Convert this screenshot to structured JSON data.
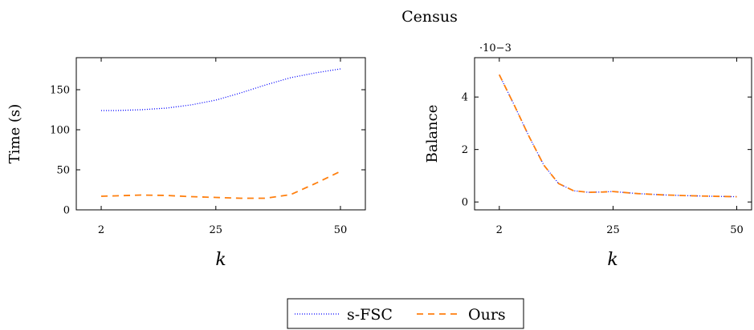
{
  "title": "Census",
  "legend": [
    {
      "name": "s-FSC",
      "color": "#0000ff",
      "style": "dotted"
    },
    {
      "name": "Ours",
      "color": "#ff7f0e",
      "style": "dashed"
    }
  ],
  "chart_data": [
    {
      "type": "line",
      "title": "",
      "xlabel": "k",
      "ylabel": "Time (s)",
      "x_ticks": [
        2,
        25,
        50
      ],
      "y_ticks": [
        0,
        50,
        100,
        150
      ],
      "xlim": [
        -3,
        55
      ],
      "ylim": [
        0,
        190
      ],
      "series": [
        {
          "name": "s-FSC",
          "color": "#0000ff",
          "dash": "dotted",
          "x": [
            2,
            5,
            10,
            15,
            20,
            25,
            30,
            35,
            40,
            45,
            50
          ],
          "y": [
            124,
            124,
            125,
            127,
            131,
            137,
            146,
            156,
            165,
            171,
            176
          ]
        },
        {
          "name": "Ours",
          "color": "#ff7f0e",
          "dash": "dashed",
          "x": [
            2,
            5,
            10,
            15,
            20,
            25,
            30,
            35,
            40,
            45,
            50
          ],
          "y": [
            17,
            17.5,
            18.5,
            18,
            16.5,
            15.5,
            14.5,
            14.5,
            19,
            33,
            48
          ]
        }
      ]
    },
    {
      "type": "line",
      "title": "",
      "xlabel": "k",
      "ylabel": "Balance",
      "y_multiplier": "·10−3",
      "x_ticks": [
        2,
        25,
        50
      ],
      "y_ticks": [
        0,
        2,
        4
      ],
      "xlim": [
        -3,
        53
      ],
      "ylim": [
        -0.3,
        5.5
      ],
      "series": [
        {
          "name": "s-FSC",
          "color": "#0000ff",
          "dash": "dotted",
          "x": [
            2,
            5,
            8,
            11,
            14,
            17,
            20,
            23,
            25,
            30,
            35,
            40,
            45,
            50
          ],
          "y": [
            4.85,
            3.7,
            2.5,
            1.4,
            0.7,
            0.43,
            0.37,
            0.38,
            0.4,
            0.32,
            0.27,
            0.24,
            0.22,
            0.2
          ]
        },
        {
          "name": "Ours",
          "color": "#ff7f0e",
          "dash": "dashed",
          "x": [
            2,
            5,
            8,
            11,
            14,
            17,
            20,
            23,
            25,
            30,
            35,
            40,
            45,
            50
          ],
          "y": [
            4.85,
            3.7,
            2.5,
            1.4,
            0.7,
            0.43,
            0.37,
            0.38,
            0.4,
            0.32,
            0.27,
            0.24,
            0.22,
            0.2
          ]
        }
      ]
    }
  ]
}
